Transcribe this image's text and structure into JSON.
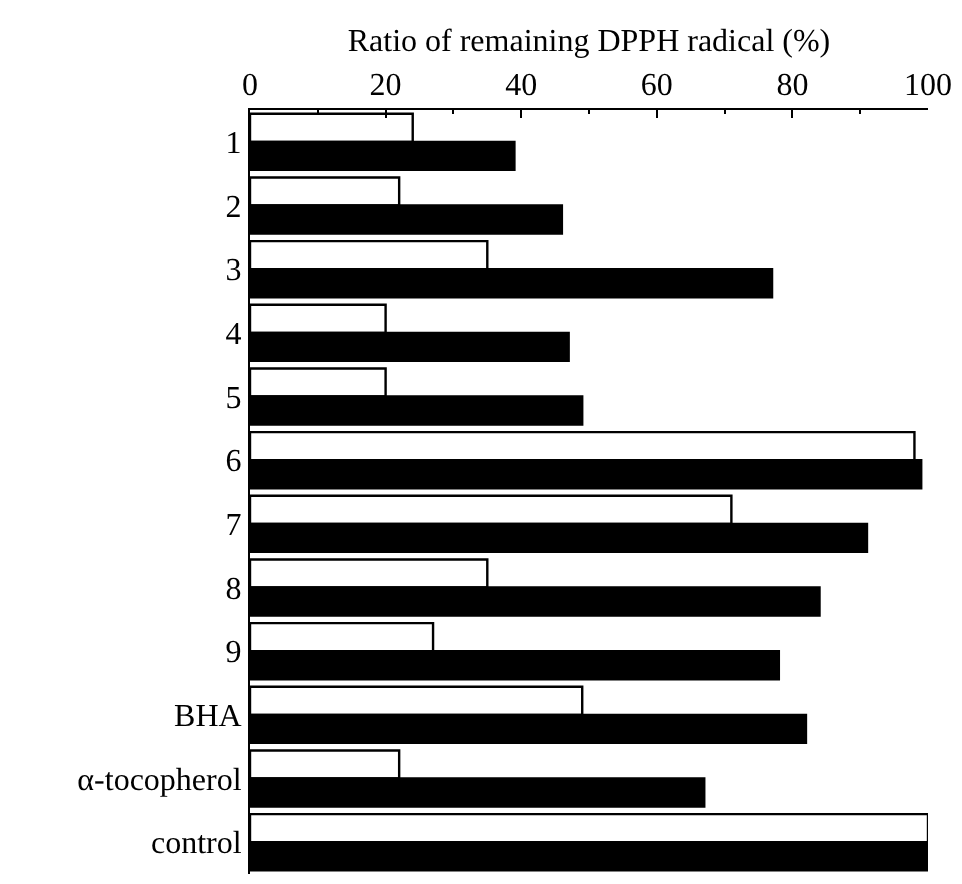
{
  "chart_data": {
    "type": "bar",
    "orientation": "horizontal",
    "xlabel": "Ratio of remaining DPPH radical (%)",
    "categories": [
      "1",
      "2",
      "3",
      "4",
      "5",
      "6",
      "7",
      "8",
      "9",
      "BHA",
      "α-tocopherol",
      "control"
    ],
    "series": [
      {
        "color": "#ffffff",
        "values": [
          24,
          22,
          35,
          20,
          20,
          98,
          71,
          35,
          27,
          49,
          22,
          100
        ]
      },
      {
        "color": "#000000",
        "values": [
          39,
          46,
          77,
          47,
          49,
          99,
          91,
          84,
          78,
          82,
          67,
          100
        ]
      }
    ],
    "xlim": [
      0,
      100
    ],
    "xticks": [
      0,
      20,
      40,
      60,
      80,
      100
    ]
  }
}
